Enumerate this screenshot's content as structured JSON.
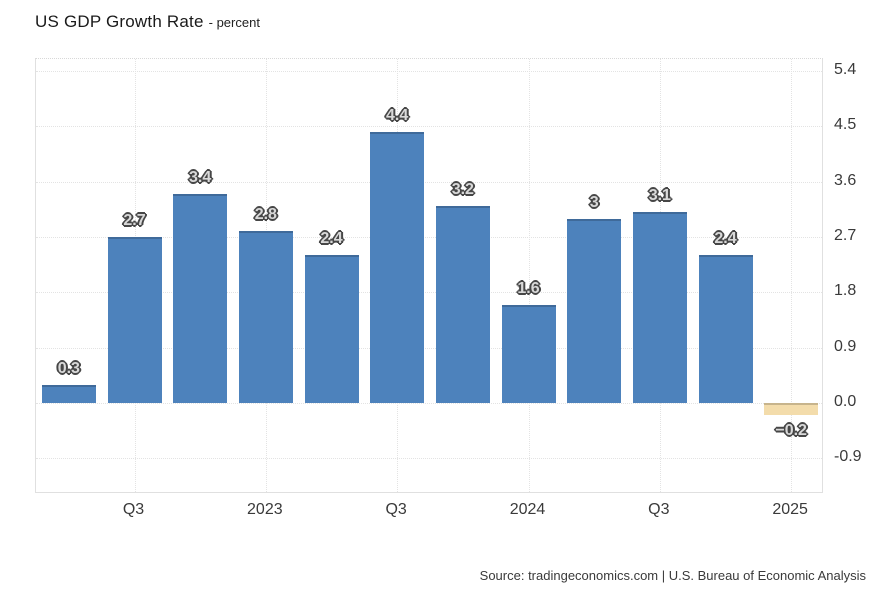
{
  "title": {
    "main": "US GDP Growth Rate",
    "sub": "- percent"
  },
  "source": "Source: tradingeconomics.com | U.S. Bureau of Economic Analysis",
  "colors": {
    "bar_positive": "#4d82bc",
    "bar_negative": "#f3dcab",
    "bar_label_fill": "#d9d9d9",
    "bar_label_outline": "#474747",
    "grid": "#e3e3e3",
    "axis_text": "#3a3a3a",
    "title_text": "#1a1a1a"
  },
  "chart_data": {
    "type": "bar",
    "title": "US GDP Growth Rate",
    "unit": "percent",
    "values": [
      0.3,
      2.7,
      3.4,
      2.8,
      2.4,
      4.4,
      3.2,
      1.6,
      3,
      3.1,
      2.4,
      -0.2
    ],
    "bar_labels": [
      "0.3",
      "2.7",
      "3.4",
      "2.8",
      "2.4",
      "4.4",
      "3.2",
      "1.6",
      "3",
      "3.1",
      "2.4",
      "−0.2"
    ],
    "x_ticks": [
      {
        "label": "Q3",
        "slot": 1
      },
      {
        "label": "2023",
        "slot": 3
      },
      {
        "label": "Q3",
        "slot": 5
      },
      {
        "label": "2024",
        "slot": 7
      },
      {
        "label": "Q3",
        "slot": 9
      },
      {
        "label": "2025",
        "slot": 11
      }
    ],
    "y_ticks": [
      "5.4",
      "4.5",
      "3.6",
      "2.7",
      "1.8",
      "0.9",
      "0.0",
      "-0.9"
    ],
    "ylim": [
      -1.48,
      5.59
    ],
    "grid": true,
    "legend": "none",
    "negative_bars_highlighted": true
  }
}
